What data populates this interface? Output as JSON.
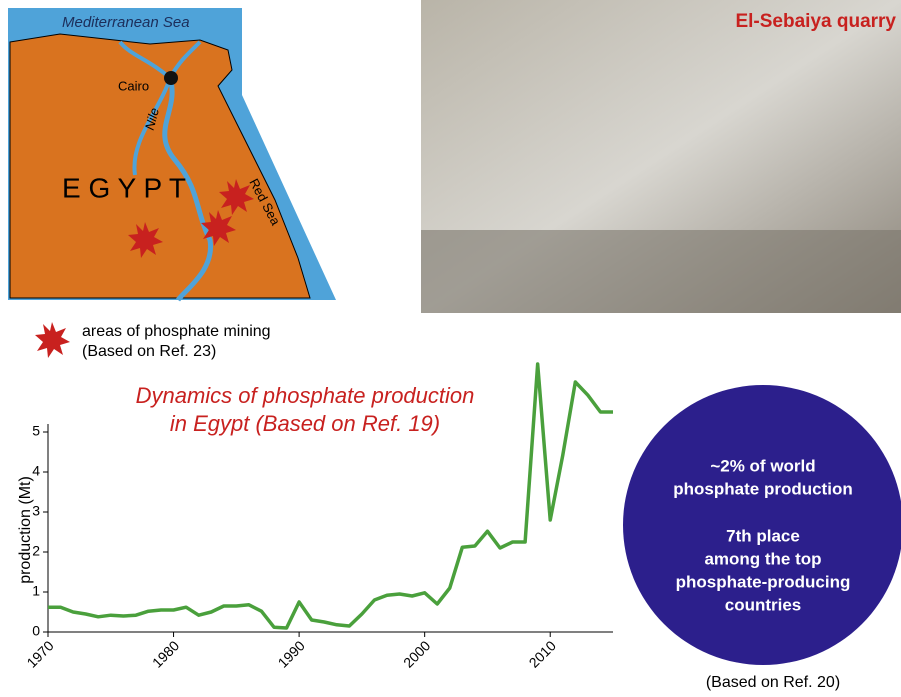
{
  "map": {
    "sea": "Mediterranean Sea",
    "city": "Cairo",
    "river": "Nile",
    "country": "E G Y P T",
    "red_sea": "Red Sea"
  },
  "legend": [
    "areas of phosphate mining",
    "(Based on Ref. 23)"
  ],
  "photo": {
    "caption": "El-Sebaiya quarry"
  },
  "chart_data": {
    "type": "line",
    "title": [
      "Dynamics of phosphate production",
      "in Egypt (Based on Ref. 19)"
    ],
    "y_label": "production (Mt)",
    "x": [
      1970,
      1971,
      1972,
      1973,
      1974,
      1975,
      1976,
      1977,
      1978,
      1979,
      1980,
      1981,
      1982,
      1983,
      1984,
      1985,
      1986,
      1987,
      1988,
      1989,
      1990,
      1991,
      1992,
      1993,
      1994,
      1995,
      1996,
      1997,
      1998,
      1999,
      2000,
      2001,
      2002,
      2003,
      2004,
      2005,
      2006,
      2007,
      2008,
      2009,
      2010,
      2011,
      2012,
      2013,
      2014,
      2015
    ],
    "values": [
      0.62,
      0.62,
      0.5,
      0.45,
      0.38,
      0.42,
      0.4,
      0.42,
      0.52,
      0.55,
      0.55,
      0.62,
      0.42,
      0.5,
      0.65,
      0.65,
      0.68,
      0.52,
      0.12,
      0.1,
      0.75,
      0.3,
      0.25,
      0.18,
      0.15,
      0.45,
      0.8,
      0.92,
      0.95,
      0.9,
      0.98,
      0.7,
      1.1,
      2.12,
      2.15,
      2.52,
      2.1,
      2.25,
      2.25,
      6.7,
      2.8,
      4.42,
      6.25,
      5.92,
      5.5,
      5.5
    ],
    "color": "#4aa03c",
    "xlim": [
      1970,
      2015
    ],
    "xticks": [
      1970,
      1980,
      1990,
      2000,
      2010
    ],
    "ylim": [
      0,
      5.2
    ],
    "yticks": [
      0,
      1,
      2,
      3,
      4,
      5
    ]
  },
  "note": {
    "lines": [
      "~2% of world",
      "phosphate production",
      "7th place",
      "among the top",
      "phosphate-producing",
      "countries"
    ],
    "source": "(Based on Ref. 20)"
  }
}
